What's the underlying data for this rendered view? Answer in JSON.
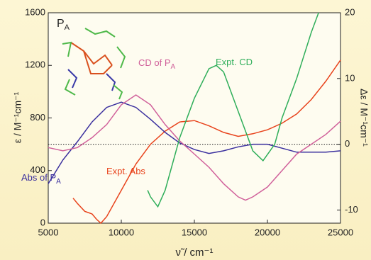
{
  "chart_data": {
    "type": "line",
    "panel_label": "P",
    "panel_label_sub": "A",
    "xlabel": "ν̃ / cm⁻¹",
    "ylabel": "ε / M⁻¹cm⁻¹",
    "y2label": "Δε / M⁻¹cm⁻¹",
    "xlim": [
      5000,
      25000
    ],
    "xticks": [
      5000,
      10000,
      15000,
      20000,
      25000
    ],
    "ylim": [
      0,
      1600
    ],
    "yticks": [
      0,
      400,
      800,
      1200,
      1600
    ],
    "y2lim": [
      -12,
      20
    ],
    "y2ticks": [
      -10,
      0,
      10,
      20
    ],
    "series": [
      {
        "name": "Expt. Abs",
        "color": "#e8431c",
        "axis": "y",
        "x": [
          6700,
          7000,
          7500,
          8000,
          8300,
          8600,
          9000,
          10000,
          11000,
          12000,
          13000,
          14000,
          15000,
          16000,
          17000,
          18000,
          19000,
          20000,
          21000,
          22000,
          23000,
          24000,
          25000
        ],
        "values": [
          190,
          150,
          90,
          70,
          30,
          0,
          50,
          250,
          450,
          600,
          700,
          770,
          780,
          740,
          690,
          660,
          680,
          710,
          760,
          830,
          940,
          1080,
          1240
        ]
      },
      {
        "name": "Abs of P",
        "name_sub": "A",
        "color": "#3a2f9e",
        "axis": "y",
        "x": [
          5000,
          6000,
          7000,
          8000,
          9000,
          10000,
          11000,
          12000,
          13000,
          14000,
          15000,
          16000,
          17000,
          18000,
          19000,
          20000,
          21000,
          22000,
          23000,
          24000,
          25000
        ],
        "values": [
          300,
          480,
          620,
          770,
          880,
          920,
          880,
          790,
          690,
          610,
          560,
          530,
          550,
          580,
          600,
          600,
          570,
          540,
          540,
          540,
          550
        ]
      },
      {
        "name": "CD of P",
        "name_sub": "A",
        "color": "#d0609a",
        "axis": "y2",
        "x": [
          5000,
          6000,
          7000,
          8000,
          9000,
          10000,
          11000,
          12000,
          13000,
          14000,
          15000,
          16000,
          17000,
          18000,
          18500,
          19000,
          20000,
          21000,
          22000,
          23000,
          24000,
          25000
        ],
        "values": [
          -0.5,
          -1,
          -0.5,
          1,
          3,
          6,
          7.5,
          6,
          3,
          0.5,
          -1.5,
          -3.5,
          -6,
          -8,
          -8.5,
          -8,
          -6.5,
          -4,
          -1.5,
          0,
          1.5,
          3.5
        ]
      },
      {
        "name": "Expt. CD",
        "color": "#2fae5a",
        "axis": "y2",
        "x": [
          11800,
          12000,
          12500,
          13000,
          13500,
          14000,
          15000,
          16000,
          16500,
          17000,
          18000,
          19000,
          19700,
          20500,
          21000,
          22000,
          23000,
          23500
        ],
        "values": [
          -7,
          -8,
          -9.5,
          -7,
          -3,
          1,
          7,
          11.5,
          12,
          11,
          5,
          -1,
          -2.5,
          0,
          4,
          10,
          17,
          20
        ]
      }
    ]
  }
}
